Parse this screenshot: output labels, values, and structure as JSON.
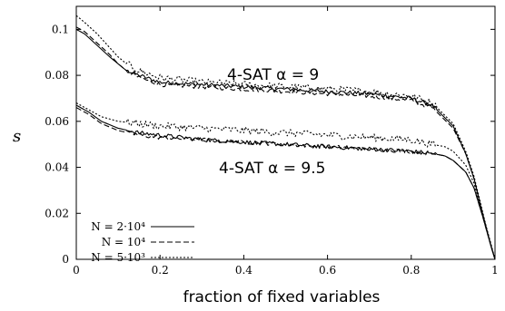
{
  "chart_data": {
    "type": "line",
    "xlabel": "fraction of fixed variables",
    "ylabel": "s",
    "xlim": [
      0,
      1
    ],
    "ylim": [
      0,
      0.11
    ],
    "xticks": [
      "0",
      "0.2",
      "0.4",
      "0.6",
      "0.8",
      "1"
    ],
    "yticks": [
      "0",
      "0.02",
      "0.04",
      "0.06",
      "0.08",
      "0.1"
    ],
    "annotations": [
      {
        "text": "4-SAT α = 9",
        "x": 0.47,
        "y": 0.079
      },
      {
        "text": "4-SAT α = 9.5",
        "x": 0.45,
        "y": 0.0395
      }
    ],
    "legend": {
      "position": "bottom-left",
      "entries": [
        {
          "label": "N = 2·10⁴",
          "style": "solid"
        },
        {
          "label": "N = 10⁴",
          "style": "dashed"
        },
        {
          "label": "N = 5·10³",
          "style": "dotted"
        }
      ]
    },
    "series": [
      {
        "group": "α = 9",
        "style": "solid",
        "x": [
          0,
          0.02,
          0.05,
          0.08,
          0.1,
          0.12,
          0.15,
          0.2,
          0.3,
          0.4,
          0.5,
          0.6,
          0.7,
          0.8,
          0.85,
          0.9,
          0.93,
          0.95,
          0.97,
          0.99,
          1.0
        ],
        "y": [
          0.1,
          0.098,
          0.093,
          0.088,
          0.085,
          0.082,
          0.08,
          0.077,
          0.076,
          0.075,
          0.074,
          0.073,
          0.072,
          0.07,
          0.067,
          0.058,
          0.046,
          0.035,
          0.02,
          0.006,
          0.0
        ]
      },
      {
        "group": "α = 9",
        "style": "dashed",
        "x": [
          0,
          0.02,
          0.05,
          0.08,
          0.1,
          0.12,
          0.15,
          0.2,
          0.3,
          0.4,
          0.5,
          0.6,
          0.7,
          0.8,
          0.85,
          0.9,
          0.93,
          0.95,
          0.97,
          0.99,
          1.0
        ],
        "y": [
          0.101,
          0.099,
          0.094,
          0.089,
          0.085,
          0.082,
          0.079,
          0.076,
          0.075,
          0.074,
          0.073,
          0.072,
          0.071,
          0.069,
          0.066,
          0.057,
          0.046,
          0.035,
          0.02,
          0.006,
          0.0
        ]
      },
      {
        "group": "α = 9",
        "style": "dotted",
        "x": [
          0,
          0.02,
          0.05,
          0.08,
          0.1,
          0.12,
          0.15,
          0.2,
          0.3,
          0.4,
          0.5,
          0.6,
          0.7,
          0.8,
          0.85,
          0.9,
          0.93,
          0.95,
          0.97,
          0.99,
          1.0
        ],
        "y": [
          0.106,
          0.103,
          0.098,
          0.092,
          0.088,
          0.085,
          0.082,
          0.079,
          0.077,
          0.076,
          0.075,
          0.074,
          0.073,
          0.071,
          0.068,
          0.059,
          0.047,
          0.036,
          0.021,
          0.006,
          0.0
        ]
      },
      {
        "group": "α = 9.5",
        "style": "solid",
        "x": [
          0,
          0.03,
          0.06,
          0.1,
          0.15,
          0.2,
          0.3,
          0.4,
          0.5,
          0.6,
          0.7,
          0.8,
          0.85,
          0.88,
          0.9,
          0.93,
          0.95,
          0.97,
          0.99,
          1.0
        ],
        "y": [
          0.067,
          0.064,
          0.06,
          0.057,
          0.055,
          0.054,
          0.052,
          0.051,
          0.05,
          0.049,
          0.048,
          0.047,
          0.046,
          0.045,
          0.043,
          0.038,
          0.031,
          0.019,
          0.006,
          0.0
        ]
      },
      {
        "group": "α = 9.5",
        "style": "dashed",
        "x": [
          0,
          0.03,
          0.06,
          0.1,
          0.15,
          0.2,
          0.3,
          0.4,
          0.5,
          0.6,
          0.7,
          0.8,
          0.85,
          0.88,
          0.9,
          0.93,
          0.95,
          0.97,
          0.99,
          1.0
        ],
        "y": [
          0.066,
          0.063,
          0.059,
          0.056,
          0.054,
          0.053,
          0.052,
          0.051,
          0.05,
          0.049,
          0.048,
          0.047,
          0.046,
          0.045,
          0.043,
          0.038,
          0.031,
          0.019,
          0.006,
          0.0
        ]
      },
      {
        "group": "α = 9.5",
        "style": "dotted",
        "x": [
          0,
          0.03,
          0.06,
          0.1,
          0.15,
          0.2,
          0.3,
          0.4,
          0.5,
          0.6,
          0.7,
          0.8,
          0.85,
          0.88,
          0.9,
          0.93,
          0.95,
          0.97,
          0.99,
          1.0
        ],
        "y": [
          0.068,
          0.065,
          0.062,
          0.06,
          0.059,
          0.058,
          0.057,
          0.056,
          0.055,
          0.054,
          0.053,
          0.052,
          0.05,
          0.049,
          0.047,
          0.041,
          0.033,
          0.02,
          0.007,
          0.0
        ]
      }
    ]
  }
}
